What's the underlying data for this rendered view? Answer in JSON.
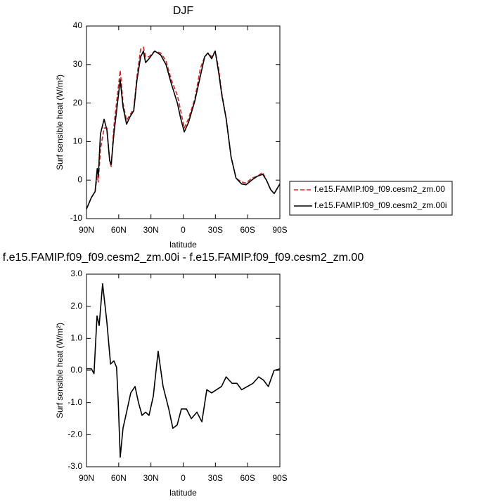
{
  "chart_data": [
    {
      "type": "line",
      "title": "DJF",
      "ylabel": "Surf sensible heat (W/m²)",
      "xlabel": "latitude",
      "xlim": [
        90,
        -90
      ],
      "xticks": [
        {
          "value": 90,
          "label": "90N"
        },
        {
          "value": 60,
          "label": "60N"
        },
        {
          "value": 30,
          "label": "30N"
        },
        0,
        {
          "value": -30,
          "label": "30S"
        },
        {
          "value": -60,
          "label": "60S"
        },
        {
          "value": -90,
          "label": "90S"
        }
      ],
      "ylim": [
        -10,
        40
      ],
      "yticks": [
        -10,
        0,
        10,
        20,
        30,
        40
      ],
      "legend": "right",
      "x": [
        90,
        85.4,
        82,
        80,
        79,
        77,
        73.6,
        71,
        68.4,
        67,
        64.5,
        58.6,
        56,
        52.7,
        49.4,
        46,
        43,
        39.6,
        37,
        35,
        31.8,
        26.5,
        21,
        16,
        11,
        5.4,
        2.3,
        -1,
        -5,
        -10.8,
        -16,
        -20,
        -23,
        -26.5,
        -29.8,
        -33,
        -36,
        -40,
        -44.6,
        -49.2,
        -54.4,
        -58.6,
        -63.8,
        -69,
        -74,
        -77.5,
        -81.5,
        -84.7,
        -90
      ],
      "series": [
        {
          "name": "f.e15.FAMIP.f09_f09.cesm2_zm.00",
          "color": "#dd2222",
          "linestyle": "dashed",
          "values": [
            -7.5,
            -4.5,
            -3,
            1,
            -0.5,
            8,
            13.5,
            13.5,
            5,
            3.5,
            14,
            28.5,
            20,
            15.5,
            17,
            18.5,
            27,
            34,
            34.5,
            32,
            32,
            33.5,
            33,
            31,
            26,
            22,
            18,
            13.5,
            16,
            21,
            29,
            32,
            33,
            32,
            33.5,
            29,
            22.5,
            16,
            6,
            0.5,
            -0.5,
            -0.8,
            0.5,
            1,
            2,
            0,
            -2.5,
            -3.5,
            -1
          ]
        },
        {
          "name": "f.e15.FAMIP.f09_f09.cesm2_zm.00i",
          "color": "#000000",
          "linestyle": "solid",
          "values": [
            -7.5,
            -4.5,
            -3,
            3,
            1,
            12,
            15.8,
            13,
            5,
            4,
            12,
            26,
            19,
            14.5,
            16.5,
            18,
            26,
            32,
            33.5,
            30.5,
            31.5,
            33.5,
            32.5,
            30,
            25,
            20,
            16,
            12.5,
            15,
            20.5,
            27,
            32,
            33,
            31.5,
            33.5,
            28,
            22,
            16,
            6,
            0.5,
            -1,
            -1.2,
            0,
            1,
            1.5,
            0,
            -2.5,
            -3.5,
            -1
          ]
        }
      ]
    },
    {
      "type": "line",
      "title": "f.e15.FAMIP.f09_f09.cesm2_zm.00i - f.e15.FAMIP.f09_f09.cesm2_zm.00",
      "ylabel": "Surf sensible heat (W/m²)",
      "xlabel": "latitude",
      "xlim": [
        90,
        -90
      ],
      "xticks": [
        {
          "value": 90,
          "label": "90N"
        },
        {
          "value": 60,
          "label": "60N"
        },
        {
          "value": 30,
          "label": "30N"
        },
        0,
        {
          "value": -30,
          "label": "30S"
        },
        {
          "value": -60,
          "label": "60S"
        },
        {
          "value": -90,
          "label": "90S"
        }
      ],
      "ylim": [
        -3,
        3
      ],
      "yticks": [
        {
          "value": -3,
          "label": "-3.0"
        },
        {
          "value": -2,
          "label": "-2.0"
        },
        {
          "value": -1,
          "label": "-1.0"
        },
        {
          "value": 0,
          "label": "0.0"
        },
        {
          "value": 1,
          "label": "1.0"
        },
        {
          "value": 2,
          "label": "2.0"
        },
        {
          "value": 3,
          "label": "3.0"
        }
      ],
      "color": "#000000",
      "x": [
        90,
        85.4,
        83,
        80.2,
        78.2,
        75,
        71,
        67.6,
        64.5,
        62,
        60.4,
        58.6,
        56,
        52.7,
        48.8,
        44.8,
        41.6,
        38.3,
        35,
        31.8,
        27.8,
        23.3,
        18.7,
        13.4,
        9.6,
        5.6,
        1.7,
        -3,
        -7.6,
        -12.8,
        -17.4,
        -22,
        -26.5,
        -31,
        -35.7,
        -40,
        -45.4,
        -50,
        -54.4,
        -59.8,
        -65,
        -70.3,
        -74.7,
        -79.3,
        -84.6,
        -90
      ],
      "values": [
        0.05,
        0.05,
        -0.1,
        1.7,
        1.4,
        2.7,
        1.5,
        0.2,
        0.3,
        0.1,
        -1,
        -2.7,
        -1.8,
        -1.3,
        -0.7,
        -0.5,
        -1,
        -1.4,
        -1.3,
        -1.4,
        -0.8,
        0.6,
        -0.5,
        -1.2,
        -1.8,
        -1.7,
        -1.2,
        -1.2,
        -1.5,
        -1.3,
        -1.6,
        -0.6,
        -0.7,
        -0.6,
        -0.5,
        -0.2,
        -0.4,
        -0.4,
        -0.6,
        -0.5,
        -0.4,
        -0.2,
        -0.3,
        -0.5,
        0,
        0.05
      ]
    }
  ]
}
